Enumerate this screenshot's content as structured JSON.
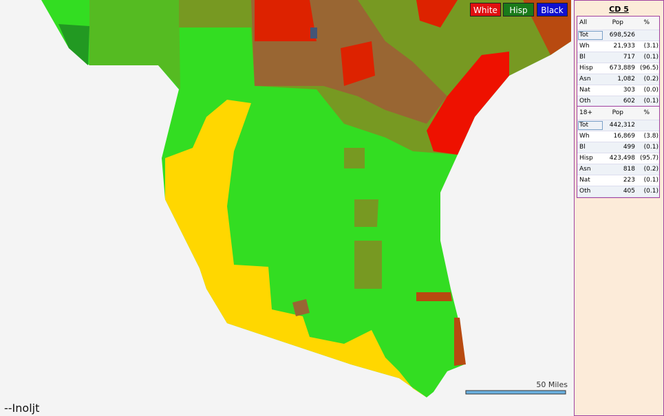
{
  "legend": {
    "buttons": [
      "White",
      "Hisp",
      "Black"
    ]
  },
  "scale": "50 Miles",
  "signature": "--Inoljt",
  "panel": {
    "title": "CD 5",
    "tables": [
      {
        "header": [
          "All",
          "Pop",
          "%"
        ],
        "rows": [
          [
            "Tot",
            "698,526"
          ],
          [
            "Wh",
            "21,933",
            "(3.1)"
          ],
          [
            "Bl",
            "717",
            "(0.1)"
          ],
          [
            "Hisp",
            "673,889",
            "(96.5)"
          ],
          [
            "Asn",
            "1,082",
            "(0.2)"
          ],
          [
            "Nat",
            "303",
            "(0.0)"
          ],
          [
            "Oth",
            "602",
            "(0.1)"
          ]
        ]
      },
      {
        "header": [
          "18+",
          "Pop",
          "%"
        ],
        "rows": [
          [
            "Tot",
            "442,312"
          ],
          [
            "Wh",
            "16,869",
            "(3.8)"
          ],
          [
            "Bl",
            "499",
            "(0.1)"
          ],
          [
            "Hisp",
            "423,498",
            "(95.7)"
          ],
          [
            "Asn",
            "818",
            "(0.2)"
          ],
          [
            "Nat",
            "223",
            "(0.1)"
          ],
          [
            "Oth",
            "405",
            "(0.1)"
          ]
        ]
      }
    ]
  }
}
